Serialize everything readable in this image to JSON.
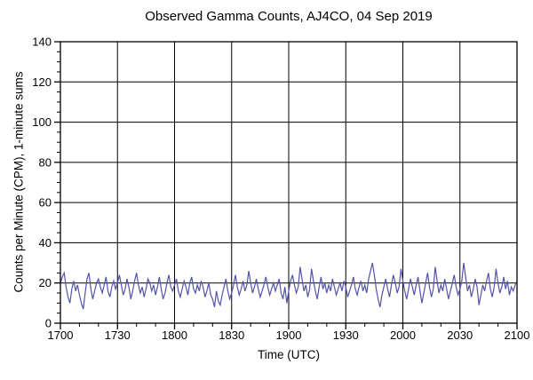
{
  "chart_data": {
    "type": "line",
    "title": "Observed Gamma Counts, AJ4CO, 04 Sep 2019",
    "xlabel": "Time (UTC)",
    "ylabel": "Counts per Minute (CPM), 1-minute sums",
    "x_tick_labels": [
      "1700",
      "1730",
      "1800",
      "1830",
      "1900",
      "1930",
      "2000",
      "2030",
      "2100"
    ],
    "x_major_ticks_minutes": [
      0,
      30,
      60,
      90,
      120,
      150,
      180,
      210,
      240
    ],
    "x_minor_step_minutes": 10,
    "xlim_minutes": [
      0,
      240
    ],
    "y_ticks": [
      0,
      20,
      40,
      60,
      80,
      100,
      120,
      140
    ],
    "y_minor_step": 5,
    "ylim": [
      0,
      140
    ],
    "grid": true,
    "legend": "none",
    "background_color": "#ffffff",
    "axis_color": "#000000",
    "line_color": "#5254a8",
    "series": [
      {
        "name": "Gamma counts, 1-minute sums",
        "start_minute": 0,
        "step_minutes": 1,
        "values": [
          20,
          23,
          25,
          18,
          13,
          10,
          17,
          21,
          16,
          19,
          14,
          10,
          7,
          15,
          22,
          25,
          17,
          12,
          16,
          20,
          22,
          18,
          15,
          19,
          23,
          16,
          13,
          18,
          21,
          17,
          20,
          24,
          19,
          14,
          17,
          22,
          18,
          12,
          16,
          21,
          25,
          19,
          15,
          18,
          13,
          17,
          22,
          20,
          16,
          19,
          14,
          18,
          23,
          17,
          12,
          15,
          20,
          24,
          18,
          16,
          19,
          22,
          16,
          13,
          17,
          21,
          18,
          14,
          20,
          23,
          17,
          15,
          19,
          16,
          21,
          18,
          13,
          16,
          20,
          14,
          12,
          8,
          16,
          11,
          9,
          14,
          18,
          22,
          16,
          12,
          15,
          19,
          24,
          18,
          14,
          17,
          21,
          16,
          19,
          26,
          20,
          15,
          18,
          22,
          17,
          13,
          16,
          19,
          23,
          18,
          14,
          17,
          20,
          16,
          19,
          22,
          15,
          12,
          18,
          10,
          16,
          21,
          24,
          19,
          15,
          18,
          28,
          22,
          16,
          19,
          13,
          17,
          27,
          21,
          16,
          12,
          18,
          23,
          17,
          20,
          15,
          19,
          16,
          22,
          18,
          14,
          17,
          20,
          16,
          21,
          18,
          13,
          16,
          19,
          23,
          17,
          14,
          18,
          21,
          16,
          19,
          15,
          22,
          26,
          30,
          24,
          17,
          12,
          8,
          14,
          18,
          22,
          17,
          13,
          19,
          24,
          20,
          15,
          18,
          27,
          21,
          16,
          12,
          17,
          22,
          18,
          14,
          19,
          23,
          16,
          10,
          15,
          20,
          25,
          18,
          13,
          17,
          28,
          21,
          15,
          19,
          16,
          22,
          17,
          12,
          16,
          20,
          24,
          18,
          14,
          17,
          21,
          30,
          23,
          16,
          19,
          13,
          17,
          22,
          18,
          9,
          14,
          19,
          16,
          21,
          25,
          17,
          13,
          18,
          27,
          20,
          15,
          18,
          23,
          17,
          21,
          14,
          18,
          16,
          19,
          21
        ]
      }
    ]
  }
}
